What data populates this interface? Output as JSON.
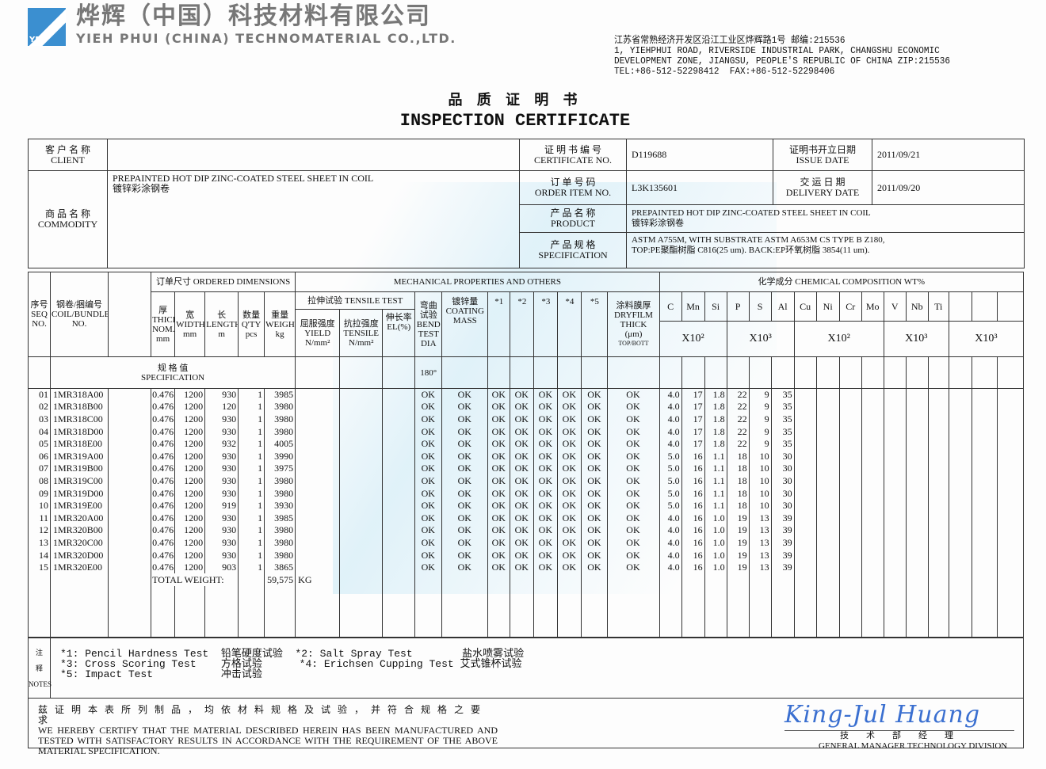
{
  "header": {
    "logo_text": "YPC",
    "company_cn": "烨辉（中国）科技材料有限公司",
    "company_en": "YIEH PHUI (CHINA) TECHNOMATERIAL CO.,LTD.",
    "address": [
      "江苏省常熟经济开发区沿江工业区烨辉路1号 邮编:215536",
      "1, YIEHPHUI ROAD, RIVERSIDE INDUSTRIAL PARK, CHANGSHU ECONOMIC",
      "DEVELOPMENT ZONE, JIANGSU, PEOPLE'S REPUBLIC OF CHINA ZIP:215536",
      "TEL:+86-512-52298412  FAX:+86-512-52298406"
    ]
  },
  "title": {
    "cn": "品 质 证 明 书",
    "en": "INSPECTION CERTIFICATE"
  },
  "info": {
    "client_cn": "客 户 名 称",
    "client_en": "CLIENT",
    "client_value": "",
    "commodity_cn": "商 品 名 称",
    "commodity_en": "COMMODITY",
    "commodity_value_en": "PREPAINTED HOT DIP ZINC-COATED STEEL SHEET IN COIL",
    "commodity_value_cn": "镀锌彩涂钢卷",
    "cert_no_cn": "证 明 书 编 号",
    "cert_no_en": "CERTIFICATE NO.",
    "cert_no": "D119688",
    "issue_cn": "证明书开立日期",
    "issue_en": "ISSUE DATE",
    "issue_date": "2011/09/21",
    "order_cn": "订 单 号 码",
    "order_en": "ORDER ITEM NO.",
    "order_no": "L3K135601",
    "delivery_cn": "交 运 日 期",
    "delivery_en": "DELIVERY DATE",
    "delivery_date": "2011/09/20",
    "product_cn": "产 品 名 称",
    "product_en": "PRODUCT",
    "product_value_en": "PREPAINTED HOT DIP ZINC-COATED STEEL SHEET IN COIL",
    "product_value_cn": "镀锌彩涂钢卷",
    "spec_cn": "产 品 规 格",
    "spec_en": "SPECIFICATION",
    "spec_value_1": "ASTM A755M, WITH SUBSTRATE ASTM A653M CS TYPE B Z180,",
    "spec_value_2": "TOP:PE聚酯树脂 C816(25 um).  BACK:EP环氧树脂 3854(11 um)."
  },
  "table": {
    "seq_cn": "序号",
    "seq_en": "SEQ NO.",
    "coil_cn": "钢卷/捆编号",
    "coil_en": "COIL/BUNDLE NO.",
    "ordered_dims": "订单尺寸 ORDERED DIMENSIONS",
    "mech": "MECHANICAL PROPERTIES AND OTHERS",
    "chem": "化学成分 CHEMICAL COMPOSITION WT%",
    "thick": [
      "厚",
      "THICK NOM.",
      "mm"
    ],
    "width": [
      "宽",
      "WIDTH",
      "mm"
    ],
    "length": [
      "长",
      "LENGTH",
      "m"
    ],
    "qty": [
      "数量",
      "Q'TY",
      "pcs"
    ],
    "weight": [
      "重量",
      "WEIGHT",
      "kg"
    ],
    "tensile_test": "拉伸试验 TENSILE TEST",
    "yield": [
      "屈服强度",
      "YIELD",
      "N/mm²"
    ],
    "tensile": [
      "抗拉强度",
      "TENSILE",
      "N/mm²"
    ],
    "el": [
      "伸长率",
      "EL(%)"
    ],
    "bend": [
      "弯曲试验",
      "BEND TEST",
      "DIA"
    ],
    "coating": [
      "镀锌量",
      "COATING MASS"
    ],
    "tests": [
      "*1",
      "*2",
      "*3",
      "*4",
      "*5"
    ],
    "dryfilm": [
      "涂料膜厚",
      "DRYFILM THICK",
      "(μm)",
      "TOP/BOTT"
    ],
    "elements": [
      "C",
      "Mn",
      "Si",
      "P",
      "S",
      "Al",
      "Cu",
      "Ni",
      "Cr",
      "Mo",
      "V",
      "Nb",
      "Ti",
      "",
      "",
      ""
    ],
    "multipliers": [
      "X10²",
      "X10³",
      "X10²",
      "X10³",
      "X10³"
    ],
    "spec_cn": "规 格 值",
    "spec_en": "SPECIFICATION",
    "bend_spec": "180°",
    "rows": [
      [
        "01",
        "1MR318A00",
        "0.476",
        "1200",
        "930",
        "1",
        "3985",
        "OK",
        "OK",
        "OK",
        "OK",
        "OK",
        "OK",
        "OK",
        "OK",
        "4.0",
        "17",
        "1.8",
        "22",
        "9",
        "35"
      ],
      [
        "02",
        "1MR318B00",
        "0.476",
        "1200",
        "120",
        "1",
        "3980",
        "OK",
        "OK",
        "OK",
        "OK",
        "OK",
        "OK",
        "OK",
        "OK",
        "4.0",
        "17",
        "1.8",
        "22",
        "9",
        "35"
      ],
      [
        "03",
        "1MR318C00",
        "0.476",
        "1200",
        "930",
        "1",
        "3980",
        "OK",
        "OK",
        "OK",
        "OK",
        "OK",
        "OK",
        "OK",
        "OK",
        "4.0",
        "17",
        "1.8",
        "22",
        "9",
        "35"
      ],
      [
        "04",
        "1MR318D00",
        "0.476",
        "1200",
        "930",
        "1",
        "3980",
        "OK",
        "OK",
        "OK",
        "OK",
        "OK",
        "OK",
        "OK",
        "OK",
        "4.0",
        "17",
        "1.8",
        "22",
        "9",
        "35"
      ],
      [
        "05",
        "1MR318E00",
        "0.476",
        "1200",
        "932",
        "1",
        "4005",
        "OK",
        "OK",
        "OK",
        "OK",
        "OK",
        "OK",
        "OK",
        "OK",
        "4.0",
        "17",
        "1.8",
        "22",
        "9",
        "35"
      ],
      [
        "06",
        "1MR319A00",
        "0.476",
        "1200",
        "930",
        "1",
        "3990",
        "OK",
        "OK",
        "OK",
        "OK",
        "OK",
        "OK",
        "OK",
        "OK",
        "5.0",
        "16",
        "1.1",
        "18",
        "10",
        "30"
      ],
      [
        "07",
        "1MR319B00",
        "0.476",
        "1200",
        "930",
        "1",
        "3975",
        "OK",
        "OK",
        "OK",
        "OK",
        "OK",
        "OK",
        "OK",
        "OK",
        "5.0",
        "16",
        "1.1",
        "18",
        "10",
        "30"
      ],
      [
        "08",
        "1MR319C00",
        "0.476",
        "1200",
        "930",
        "1",
        "3980",
        "OK",
        "OK",
        "OK",
        "OK",
        "OK",
        "OK",
        "OK",
        "OK",
        "5.0",
        "16",
        "1.1",
        "18",
        "10",
        "30"
      ],
      [
        "09",
        "1MR319D00",
        "0.476",
        "1200",
        "930",
        "1",
        "3980",
        "OK",
        "OK",
        "OK",
        "OK",
        "OK",
        "OK",
        "OK",
        "OK",
        "5.0",
        "16",
        "1.1",
        "18",
        "10",
        "30"
      ],
      [
        "10",
        "1MR319E00",
        "0.476",
        "1200",
        "919",
        "1",
        "3930",
        "OK",
        "OK",
        "OK",
        "OK",
        "OK",
        "OK",
        "OK",
        "OK",
        "5.0",
        "16",
        "1.1",
        "18",
        "10",
        "30"
      ],
      [
        "11",
        "1MR320A00",
        "0.476",
        "1200",
        "930",
        "1",
        "3985",
        "OK",
        "OK",
        "OK",
        "OK",
        "OK",
        "OK",
        "OK",
        "OK",
        "4.0",
        "16",
        "1.0",
        "19",
        "13",
        "39"
      ],
      [
        "12",
        "1MR320B00",
        "0.476",
        "1200",
        "930",
        "1",
        "3980",
        "OK",
        "OK",
        "OK",
        "OK",
        "OK",
        "OK",
        "OK",
        "OK",
        "4.0",
        "16",
        "1.0",
        "19",
        "13",
        "39"
      ],
      [
        "13",
        "1MR320C00",
        "0.476",
        "1200",
        "930",
        "1",
        "3980",
        "OK",
        "OK",
        "OK",
        "OK",
        "OK",
        "OK",
        "OK",
        "OK",
        "4.0",
        "16",
        "1.0",
        "19",
        "13",
        "39"
      ],
      [
        "14",
        "1MR320D00",
        "0.476",
        "1200",
        "930",
        "1",
        "3980",
        "OK",
        "OK",
        "OK",
        "OK",
        "OK",
        "OK",
        "OK",
        "OK",
        "4.0",
        "16",
        "1.0",
        "19",
        "13",
        "39"
      ],
      [
        "15",
        "1MR320E00",
        "0.476",
        "1200",
        "903",
        "1",
        "3865",
        "OK",
        "OK",
        "OK",
        "OK",
        "OK",
        "OK",
        "OK",
        "OK",
        "4.0",
        "16",
        "1.0",
        "19",
        "13",
        "39"
      ]
    ],
    "total_label": "TOTAL  WEIGHT:",
    "total_value": "59,575",
    "total_unit": "KG"
  },
  "notes": {
    "label": [
      "注",
      "释",
      "NOTES"
    ],
    "lines": [
      "*1: Pencil Hardness Test  铅笔硬度试验  *2: Salt Spray Test        盐水喷雾试验",
      "*3: Cross Scoring Test    方格试验      *4: Erichsen Cupping Test 艾式锥杯试验",
      "*5: Impact Test           冲击试验"
    ],
    "certify_cn": "兹 证 明 本 表 所 列 制 品 ， 均 依 材 料 规 格 及 试 验 ， 并 符 合 规 格 之 要 求",
    "certify_en": "WE HEREBY CERTIFY THAT THE MATERIAL DESCRIBED HEREIN HAS BEEN MANUFACTURED AND TESTED WITH SATISFACTORY RESULTS IN ACCORDANCE WITH THE REQUIREMENT OF THE ABOVE MATERIAL SPECIFICATION."
  },
  "signature": {
    "name": "King-Jul Huang",
    "title_cn": "技术部经理",
    "title_en": "GENERAL MANAGER TECHNOLOGY DIVISION"
  }
}
